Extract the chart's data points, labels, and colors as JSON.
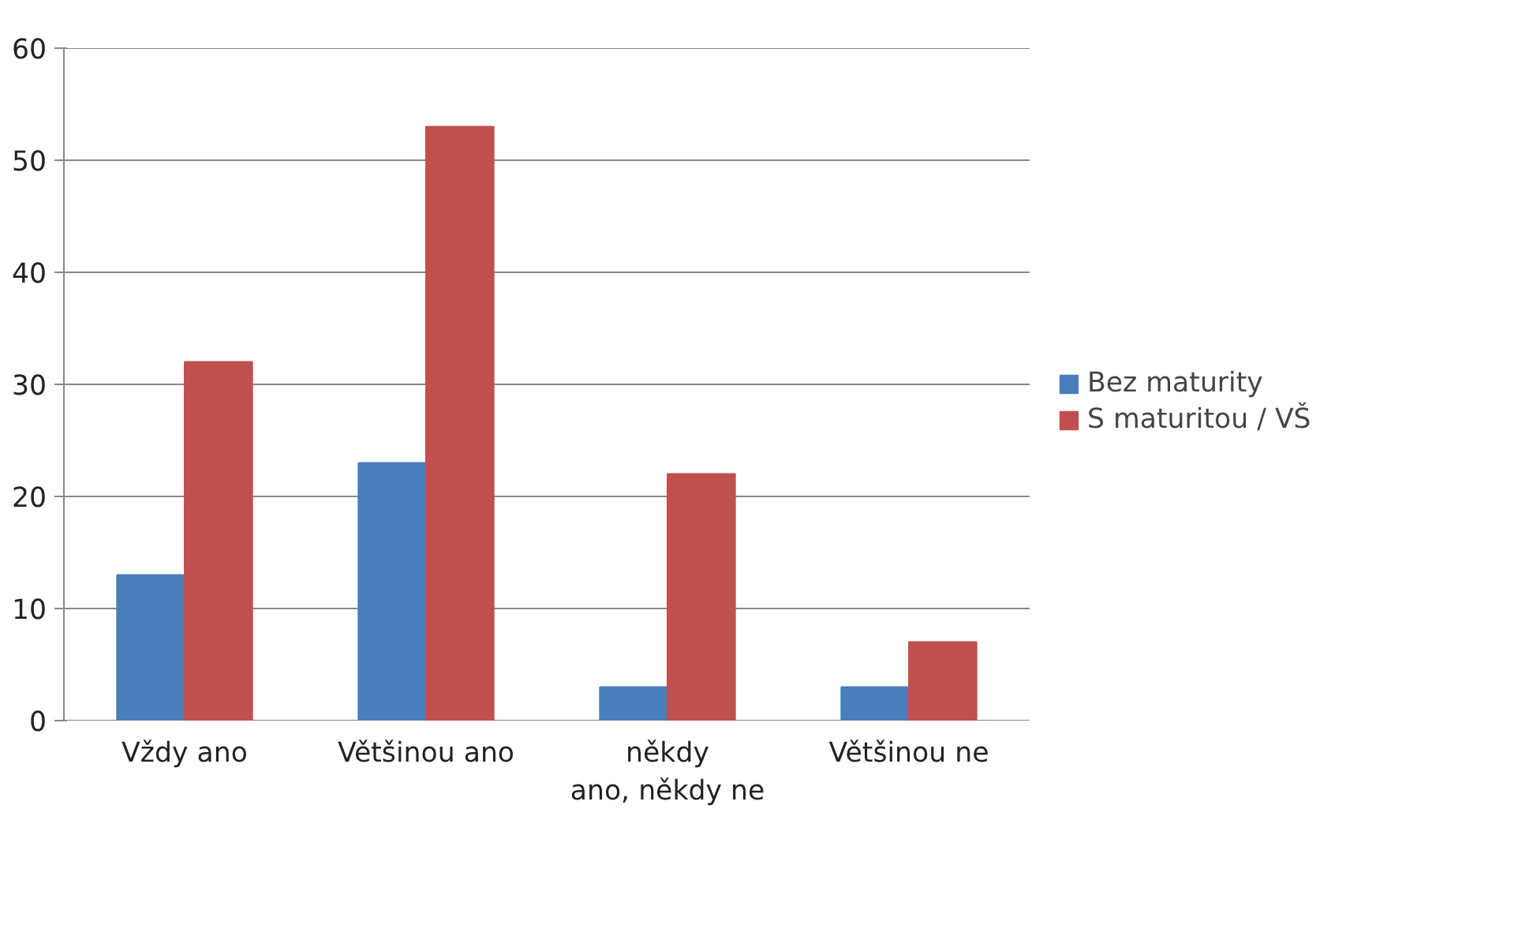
{
  "chart_data": {
    "type": "bar",
    "categories": [
      "Vždy ano",
      "Většinou ano",
      "někdy ano, někdy ne",
      "Většinou ne"
    ],
    "series": [
      {
        "name": "Bez maturity",
        "color": "#4a7ebb",
        "values": [
          13,
          23,
          3,
          3
        ]
      },
      {
        "name": "S maturitou / VŠ",
        "color": "#c0504d",
        "values": [
          32,
          53,
          22,
          7
        ]
      }
    ],
    "ylim": [
      0,
      60
    ],
    "yticks": [
      0,
      10,
      20,
      30,
      40,
      50,
      60
    ],
    "grid": "y",
    "legend": "right"
  }
}
